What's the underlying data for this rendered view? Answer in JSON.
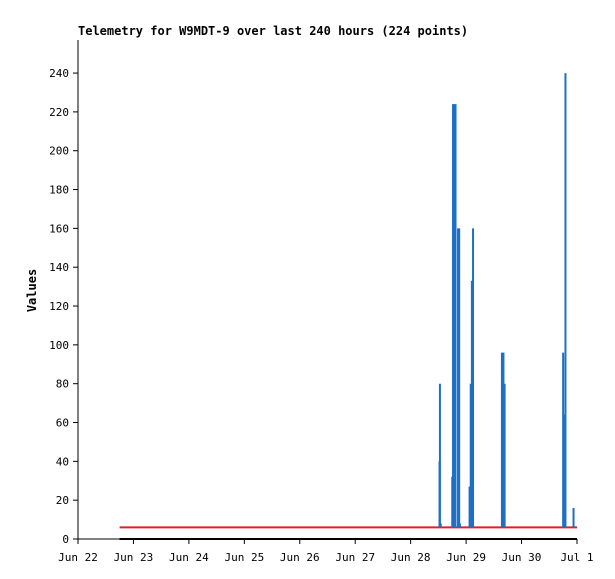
{
  "chart_data": {
    "type": "line",
    "title": "Telemetry for W9MDT-9 over last 240 hours (224 points)",
    "xlabel": "",
    "ylabel": "Values",
    "x_ticks": [
      "Jun 22",
      "Jun 23",
      "Jun 24",
      "Jun 25",
      "Jun 26",
      "Jun 27",
      "Jun 28",
      "Jun 29",
      "Jun 30",
      "Jul 1"
    ],
    "y_ticks": [
      0,
      20,
      40,
      60,
      80,
      100,
      120,
      140,
      160,
      180,
      200,
      220,
      240
    ],
    "xlim": [
      "Jun 22 00:00",
      "Jul 1 00:00"
    ],
    "ylim": [
      0,
      256
    ],
    "grid": false,
    "legend": "none",
    "colors": {
      "spikes": "#1f6fc5",
      "baseline": "#e02020",
      "floor": "#000000",
      "axis": "#000000"
    },
    "series": [
      {
        "color": "#e02020",
        "x": [
          "Jun 22 18:00",
          "Jun 28 12:00",
          "Jun 29 16:00",
          "Jun 30 19:00",
          "Jul 1 00:00"
        ],
        "y": [
          6,
          6,
          6,
          6,
          6
        ]
      },
      {
        "color": "#000000",
        "x": [
          "Jun 22 18:00",
          "Jul 1 00:00"
        ],
        "y": [
          0,
          0
        ]
      },
      {
        "color": "#1f6fc5",
        "x": [
          "Jun 28 12:30",
          "Jun 28 12:40",
          "Jun 28 13:00",
          "Jun 28 18:00",
          "Jun 28 18:20",
          "Jun 28 18:45",
          "Jun 28 19:00",
          "Jun 28 19:25",
          "Jun 28 20:30",
          "Jun 28 21:00",
          "Jun 28 21:20",
          "Jun 29 01:30",
          "Jun 29 02:00",
          "Jun 29 02:30",
          "Jun 29 03:00",
          "Jun 29 15:30",
          "Jun 29 16:10",
          "Jun 29 16:40",
          "Jun 30 18:00",
          "Jun 30 18:30",
          "Jun 30 19:00",
          "Jun 30 22:30"
        ],
        "y": [
          40,
          80,
          8,
          32,
          224,
          224,
          112,
          224,
          160,
          160,
          8,
          27,
          80,
          133,
          160,
          96,
          96,
          80,
          96,
          64,
          240,
          16
        ]
      }
    ]
  }
}
